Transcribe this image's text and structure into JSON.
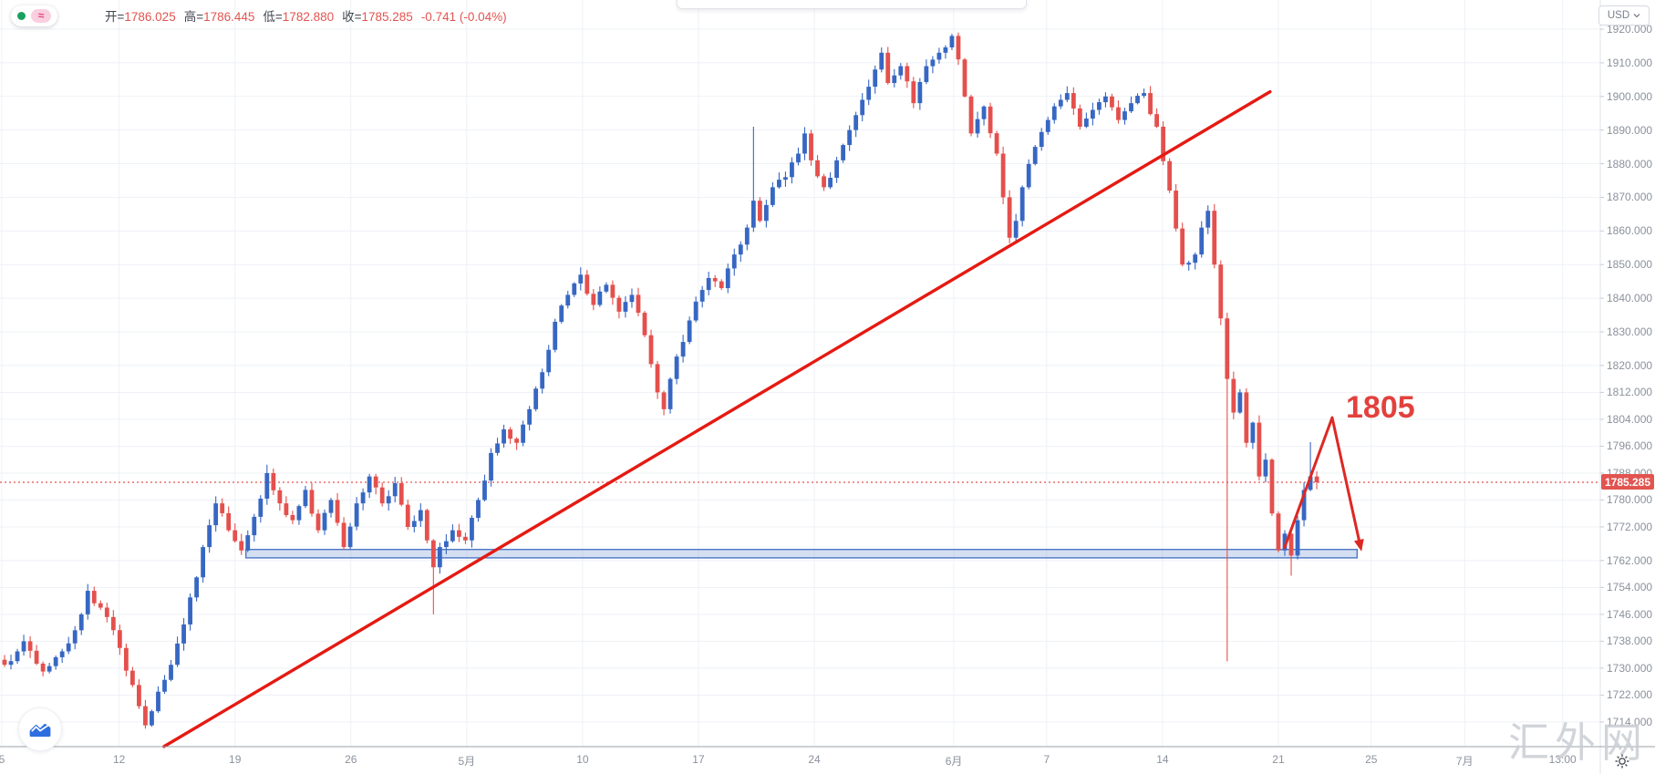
{
  "header": {
    "series_toggle": {
      "indicator_symbol": "≈"
    },
    "legend": {
      "items": [
        {
          "label": "开",
          "value": "1786.025"
        },
        {
          "label": "高",
          "value": "1786.445"
        },
        {
          "label": "低",
          "value": "1782.880"
        },
        {
          "label": "收",
          "value": "1785.285"
        }
      ],
      "change": "-0.741 (-0.04%)"
    },
    "currency_button": {
      "label": "USD"
    }
  },
  "watermark": "汇外网",
  "colors": {
    "up": "#3767c2",
    "down": "#e4504d",
    "grid": "#eef1f6",
    "axis_text": "#8b919c",
    "trendline": "#e51a12",
    "projection": "#dd2823",
    "price_line": "#e25450",
    "zone_border": "#4d77c6",
    "zone_fill": "rgba(115,150,212,0.30)"
  },
  "chart_data": {
    "type": "candlestick",
    "title": "",
    "ohlc_legend": {
      "open": 1786.025,
      "high": 1786.445,
      "low": 1782.88,
      "close": 1785.285,
      "change": -0.741,
      "change_percent": "-0.04%"
    },
    "last_price": "1785.285",
    "y_axis": {
      "unit": "USD",
      "ticks": [
        "1920.000",
        "1910.000",
        "1900.000",
        "1890.000",
        "1880.000",
        "1870.000",
        "1860.000",
        "1850.000",
        "1840.000",
        "1830.000",
        "1820.000",
        "1812.000",
        "1804.000",
        "1796.000",
        "1788.000",
        "1780.000",
        "1772.000",
        "1762.000",
        "1754.000",
        "1746.000",
        "1738.000",
        "1730.000",
        "1722.000",
        "1714.000"
      ]
    },
    "x_axis": {
      "ticks": [
        {
          "label": "5",
          "bar": -0.43
        },
        {
          "label": "12",
          "bar": 17.9
        },
        {
          "label": "19",
          "bar": 36.0
        },
        {
          "label": "26",
          "bar": 54.1
        },
        {
          "label": "5月",
          "bar": 72.2
        },
        {
          "label": "10",
          "bar": 90.3
        },
        {
          "label": "17",
          "bar": 108.4
        },
        {
          "label": "24",
          "bar": 126.5
        },
        {
          "label": "6月",
          "bar": 148.3
        },
        {
          "label": "7",
          "bar": 162.8
        },
        {
          "label": "14",
          "bar": 180.9
        },
        {
          "label": "21",
          "bar": 199.0
        },
        {
          "label": "25",
          "bar": 213.5
        },
        {
          "label": "7月",
          "bar": 228.1
        },
        {
          "label": "13:00",
          "bar": 243.4
        }
      ]
    },
    "bars": {
      "count": 206,
      "close_anchors": [
        [
          0,
          1731
        ],
        [
          3,
          1738
        ],
        [
          6,
          1729
        ],
        [
          9,
          1735
        ],
        [
          12,
          1746
        ],
        [
          13,
          1753
        ],
        [
          15,
          1748
        ],
        [
          18,
          1736
        ],
        [
          20,
          1725
        ],
        [
          22,
          1713
        ],
        [
          24,
          1723
        ],
        [
          26,
          1731
        ],
        [
          28,
          1743
        ],
        [
          30,
          1757
        ],
        [
          31,
          1766
        ],
        [
          33,
          1779
        ],
        [
          35,
          1771
        ],
        [
          37,
          1765
        ],
        [
          39,
          1775
        ],
        [
          41,
          1788
        ],
        [
          43,
          1779
        ],
        [
          45,
          1774
        ],
        [
          47,
          1783
        ],
        [
          49,
          1771
        ],
        [
          51,
          1780
        ],
        [
          53,
          1766
        ],
        [
          55,
          1779
        ],
        [
          57,
          1787
        ],
        [
          59,
          1779
        ],
        [
          61,
          1785
        ],
        [
          63,
          1772
        ],
        [
          65,
          1777
        ],
        [
          66,
          1768
        ],
        [
          67,
          1760
        ],
        [
          68,
          1766
        ],
        [
          70,
          1771
        ],
        [
          72,
          1768
        ],
        [
          74,
          1780
        ],
        [
          76,
          1794
        ],
        [
          78,
          1801
        ],
        [
          80,
          1797
        ],
        [
          82,
          1807
        ],
        [
          84,
          1818
        ],
        [
          86,
          1833
        ],
        [
          88,
          1841
        ],
        [
          90,
          1847
        ],
        [
          92,
          1838
        ],
        [
          94,
          1844
        ],
        [
          96,
          1836
        ],
        [
          98,
          1841
        ],
        [
          100,
          1829
        ],
        [
          102,
          1812
        ],
        [
          103,
          1807
        ],
        [
          104,
          1816
        ],
        [
          106,
          1827
        ],
        [
          108,
          1839
        ],
        [
          110,
          1846
        ],
        [
          112,
          1843
        ],
        [
          114,
          1853
        ],
        [
          116,
          1861
        ],
        [
          117,
          1869
        ],
        [
          118,
          1863
        ],
        [
          120,
          1873
        ],
        [
          122,
          1876
        ],
        [
          124,
          1883
        ],
        [
          125,
          1889
        ],
        [
          126,
          1881
        ],
        [
          128,
          1873
        ],
        [
          130,
          1881
        ],
        [
          132,
          1890
        ],
        [
          134,
          1899
        ],
        [
          136,
          1908
        ],
        [
          137,
          1913
        ],
        [
          138,
          1904
        ],
        [
          140,
          1909
        ],
        [
          142,
          1898
        ],
        [
          144,
          1909
        ],
        [
          146,
          1913
        ],
        [
          148,
          1918
        ],
        [
          149,
          1911
        ],
        [
          151,
          1889
        ],
        [
          153,
          1897
        ],
        [
          155,
          1883
        ],
        [
          157,
          1858
        ],
        [
          158,
          1863
        ],
        [
          159,
          1873
        ],
        [
          161,
          1885
        ],
        [
          163,
          1893
        ],
        [
          165,
          1899
        ],
        [
          166,
          1901
        ],
        [
          168,
          1891
        ],
        [
          170,
          1896
        ],
        [
          172,
          1900
        ],
        [
          174,
          1893
        ],
        [
          176,
          1898
        ],
        [
          178,
          1901
        ],
        [
          180,
          1891
        ],
        [
          182,
          1872
        ],
        [
          184,
          1850
        ],
        [
          186,
          1853
        ],
        [
          187,
          1861
        ],
        [
          188,
          1866
        ],
        [
          189,
          1850
        ],
        [
          190,
          1834
        ],
        [
          191,
          1816
        ],
        [
          192,
          1806
        ],
        [
          193,
          1812
        ],
        [
          194,
          1797
        ],
        [
          195,
          1803
        ],
        [
          196,
          1787
        ],
        [
          197,
          1792
        ],
        [
          198,
          1776
        ],
        [
          199,
          1765
        ],
        [
          200,
          1770
        ],
        [
          201,
          1763.5
        ],
        [
          202,
          1774
        ],
        [
          203,
          1783
        ],
        [
          204,
          1787
        ],
        [
          205,
          1785.285
        ]
      ],
      "wick_spikes": [
        {
          "bar": 22,
          "low": 1712.5
        },
        {
          "bar": 41,
          "high": 1790.5
        },
        {
          "bar": 67,
          "low": 1746
        },
        {
          "bar": 117,
          "high": 1891
        },
        {
          "bar": 148,
          "high": 1918.6
        },
        {
          "bar": 191,
          "low": 1732
        },
        {
          "bar": 201,
          "low": 1757.5
        },
        {
          "bar": 204,
          "high": 1797.2
        }
      ]
    },
    "annotations": {
      "trendline": {
        "from": {
          "bar": 24.9,
          "price": 1706.7
        },
        "to": {
          "bar": 197.7,
          "price": 1901.4
        }
      },
      "support_zone": {
        "price_top": 1765.3,
        "price_bottom": 1762.8,
        "bar_start": 37.7,
        "bar_end": 211.3
      },
      "projection": {
        "label": "1805",
        "points": [
          [
            199.9,
            1765.5
          ],
          [
            207.4,
            1804.5
          ],
          [
            211.8,
            1766.3
          ]
        ]
      },
      "price_line": {
        "price": 1785.285
      }
    }
  }
}
